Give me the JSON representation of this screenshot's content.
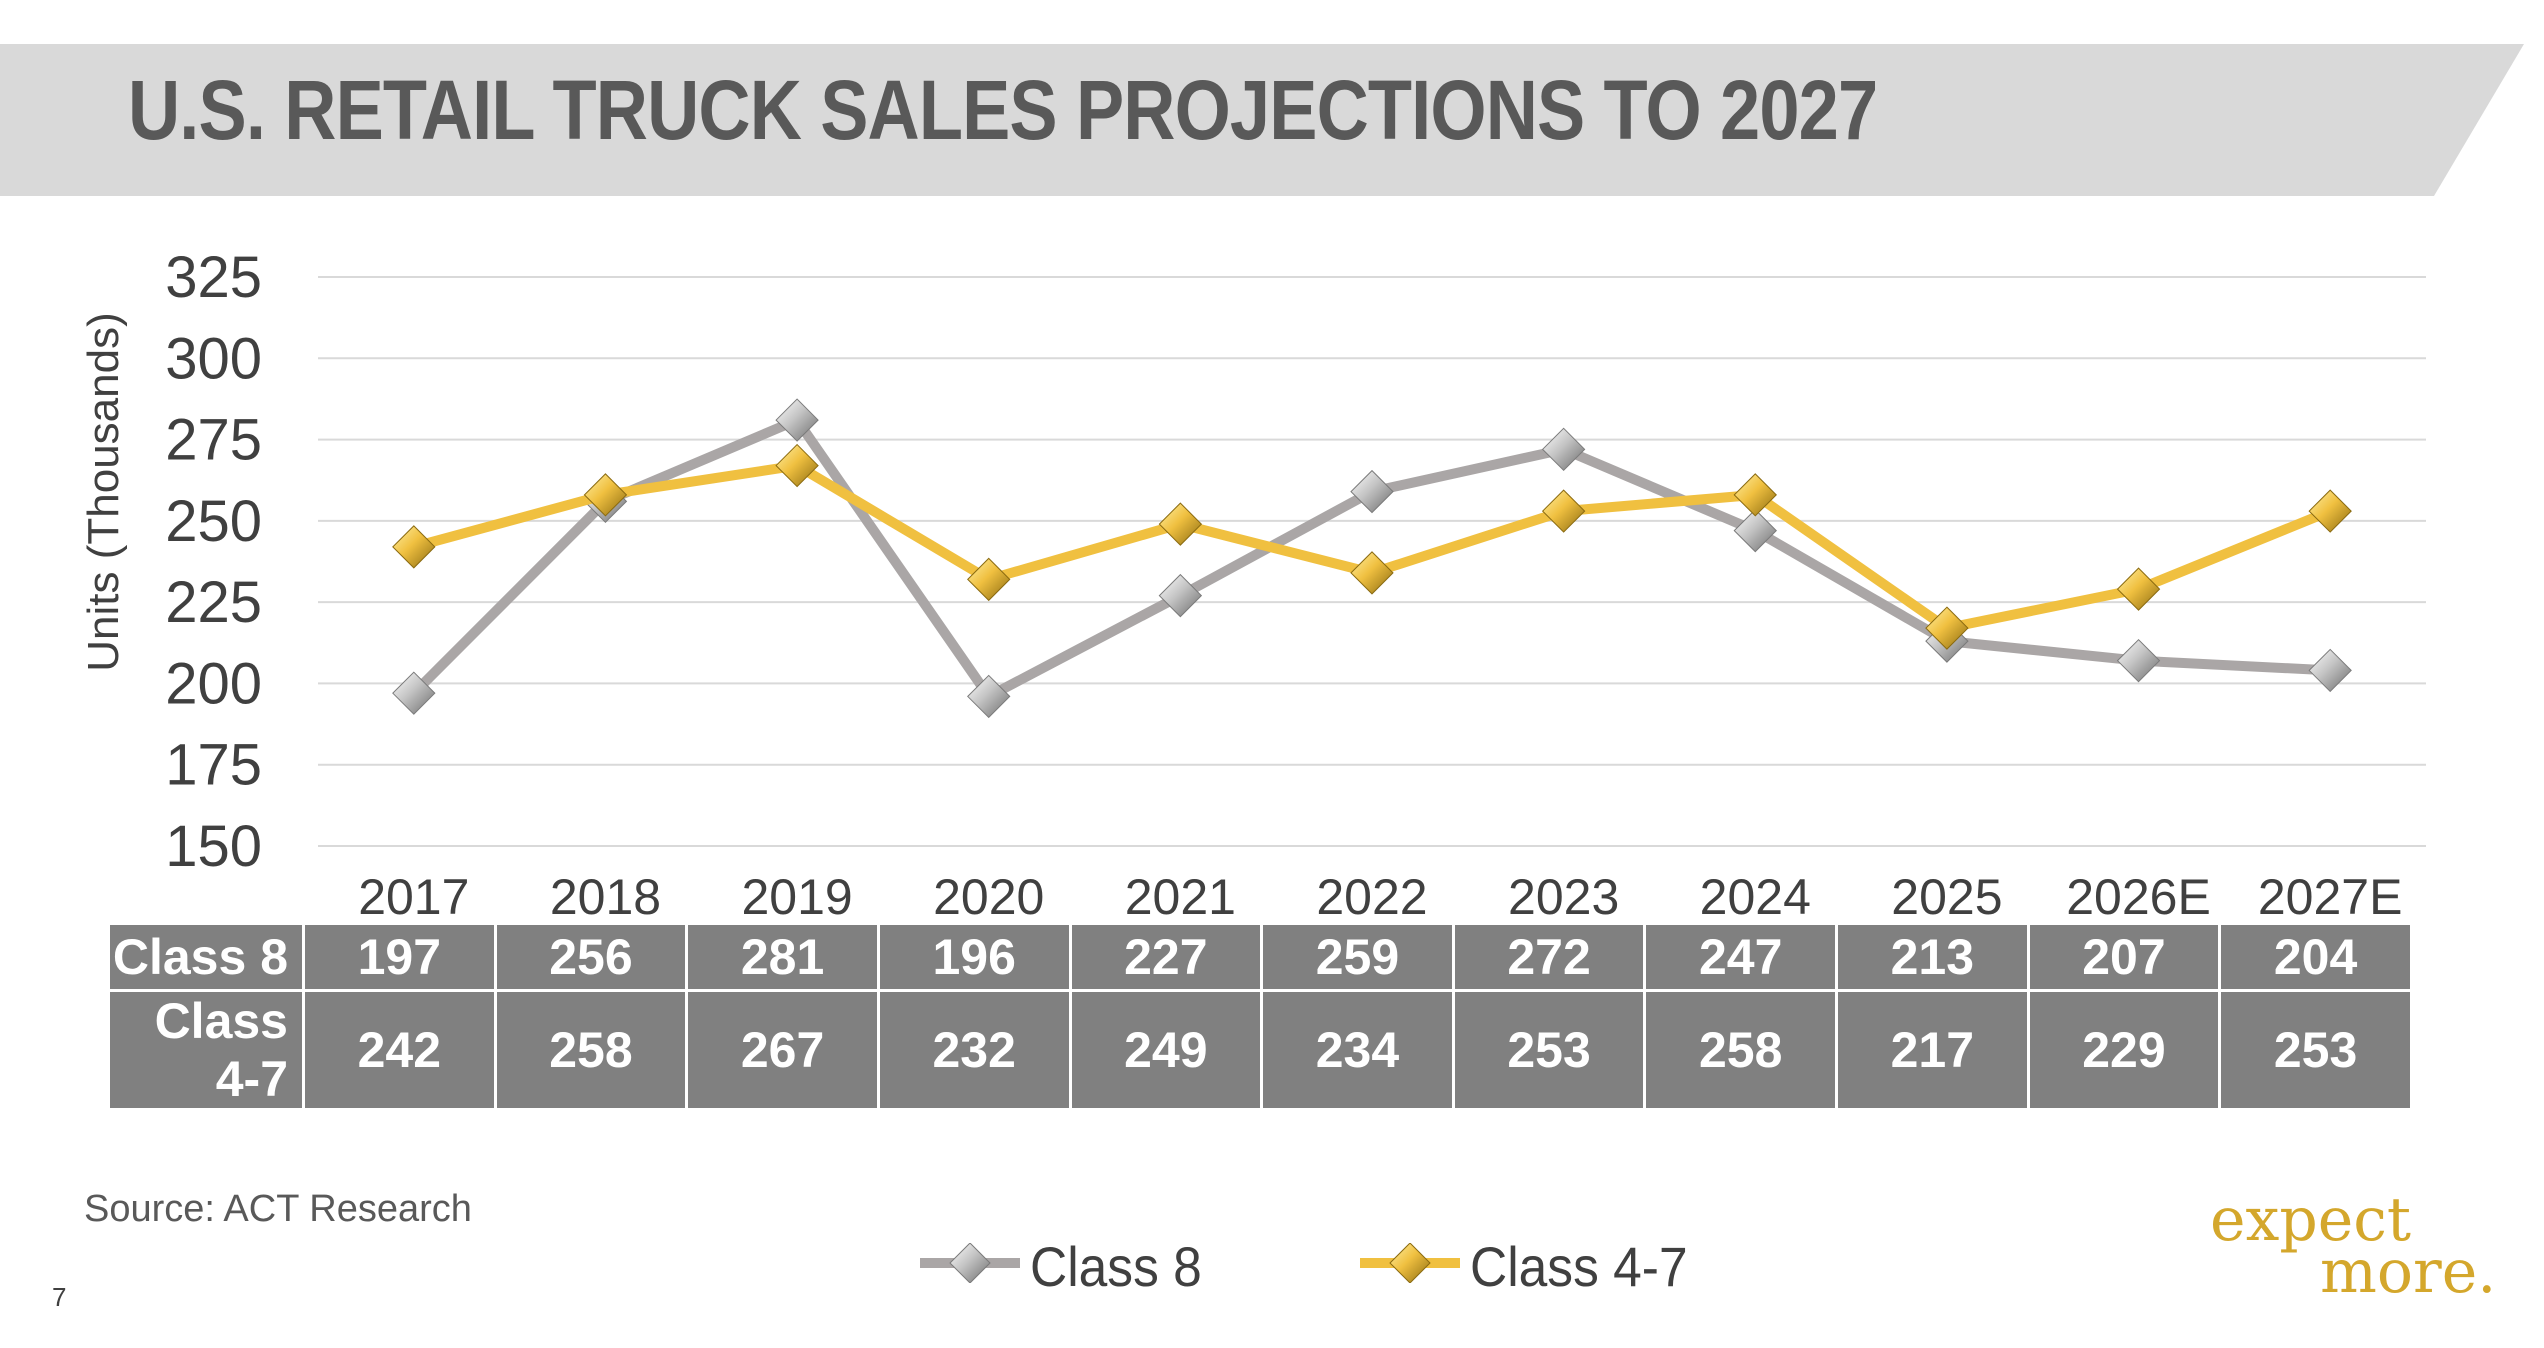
{
  "slide": {
    "title": "U.S. RETAIL TRUCK SALES PROJECTIONS TO 2027",
    "source": "Source:  ACT Research",
    "page_number": "7",
    "logo": {
      "line1": "expect",
      "line2": "more."
    },
    "colors": {
      "title_bar": "#d9d9d9",
      "title_text": "#595959",
      "table_bg": "#808080",
      "logo": "#d4a72c"
    }
  },
  "chart_data": {
    "type": "line",
    "ylabel": "Units (Thousands)",
    "ylim": [
      150,
      325
    ],
    "yticks": [
      150,
      175,
      200,
      225,
      250,
      275,
      300,
      325
    ],
    "categories": [
      "2017",
      "2018",
      "2019",
      "2020",
      "2021",
      "2022",
      "2023",
      "2024",
      "2025",
      "2026E",
      "2027E"
    ],
    "series": [
      {
        "name": "Class 8",
        "values": [
          197,
          256,
          281,
          196,
          227,
          259,
          272,
          247,
          213,
          207,
          204
        ],
        "color": "#aaa6a6",
        "marker": "diamond-silver"
      },
      {
        "name": "Class 4-7",
        "values": [
          242,
          258,
          267,
          232,
          249,
          234,
          253,
          258,
          217,
          229,
          253
        ],
        "color": "#f0c040",
        "marker": "diamond-gold"
      }
    ],
    "grid": true,
    "legend_position": "bottom",
    "table_below": true
  }
}
